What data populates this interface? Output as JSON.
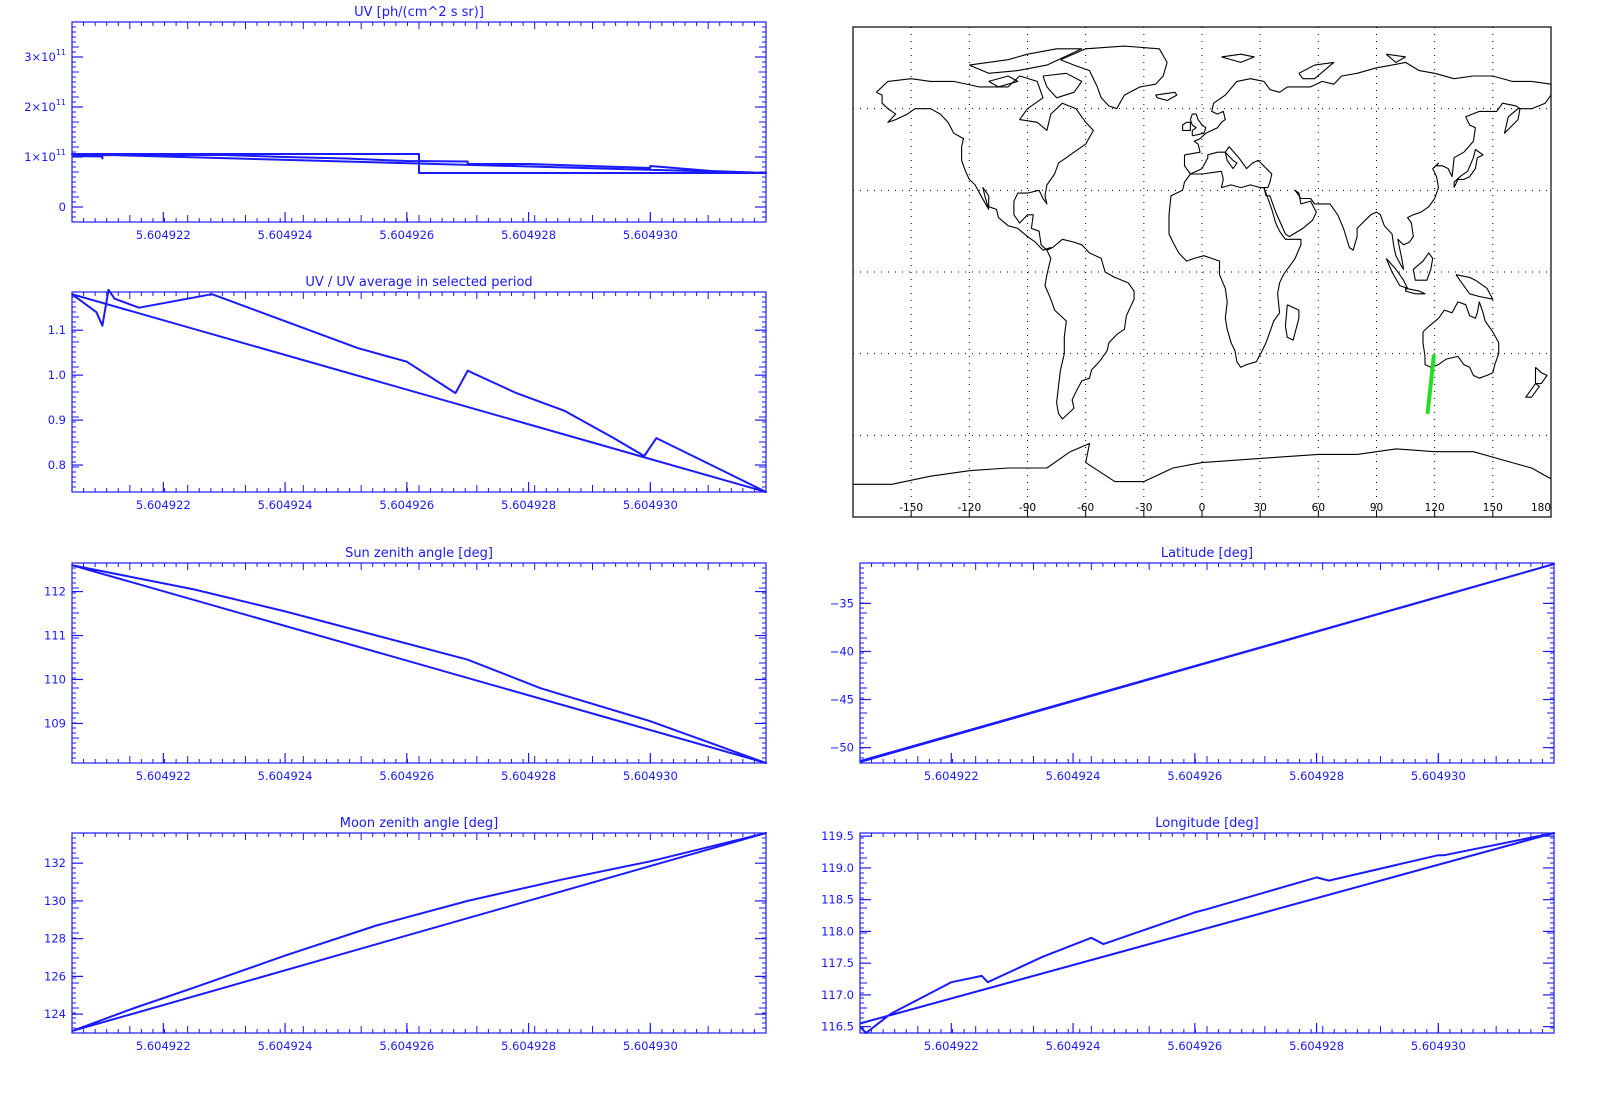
{
  "colors": {
    "plot": "#1a1aff",
    "track": "#22e022",
    "coast": "#000000",
    "grid": "#000000"
  },
  "chart_data": [
    {
      "id": "uv",
      "type": "line",
      "title": "UV [ph/(cm^2 s sr)]",
      "xticks": [
        "5.604922",
        "5.604924",
        "5.604926",
        "5.604928",
        "5.604930"
      ],
      "xtick_values": [
        5.604922,
        5.604924,
        5.604926,
        5.604928,
        5.60493
      ],
      "xlim": [
        5.6049205,
        5.6049319
      ],
      "ylim": [
        -0.3,
        3.7
      ],
      "yticks": [
        {
          "v": 0,
          "base": "0",
          "exp": ""
        },
        {
          "v": 1,
          "base": "1×10",
          "exp": "11"
        },
        {
          "v": 2,
          "base": "2×10",
          "exp": "11"
        },
        {
          "v": 3,
          "base": "3×10",
          "exp": "11"
        }
      ],
      "y_multiplier": "1e11",
      "x": [
        5.6049205,
        5.604921,
        5.604921,
        5.604921,
        5.604922,
        5.604922,
        5.604923,
        5.604924,
        5.604925,
        5.604926,
        5.604926,
        5.604927,
        5.604927,
        5.604928,
        5.604929,
        5.60493,
        5.60493,
        5.604931,
        5.6049319,
        5.6049205,
        5.6049262,
        5.6049262,
        5.6049319
      ],
      "y": [
        1.02,
        1.01,
        0.97,
        1.04,
        1.03,
        1.04,
        1.04,
        1.0,
        0.97,
        0.92,
        0.92,
        0.91,
        0.86,
        0.86,
        0.82,
        0.78,
        0.82,
        0.72,
        0.68,
        1.06,
        1.06,
        0.68,
        0.68
      ]
    },
    {
      "id": "uvratio",
      "type": "line",
      "title": "UV / UV average in selected period",
      "xticks": [
        "5.604922",
        "5.604924",
        "5.604926",
        "5.604928",
        "5.604930"
      ],
      "xtick_values": [
        5.604922,
        5.604924,
        5.604926,
        5.604928,
        5.60493
      ],
      "xlim": [
        5.6049205,
        5.6049319
      ],
      "ylim": [
        0.74,
        1.185
      ],
      "yticks": [
        {
          "v": 0.8,
          "base": "0.8",
          "exp": ""
        },
        {
          "v": 0.9,
          "base": "0.9",
          "exp": ""
        },
        {
          "v": 1.0,
          "base": "1.0",
          "exp": ""
        },
        {
          "v": 1.1,
          "base": "1.1",
          "exp": ""
        }
      ],
      "x": [
        5.6049205,
        5.6049209,
        5.604921,
        5.6049211,
        5.6049212,
        5.6049216,
        5.604922,
        5.6049228,
        5.6049236,
        5.6049244,
        5.6049252,
        5.604926,
        5.6049268,
        5.604927,
        5.6049278,
        5.6049286,
        5.6049294,
        5.6049299,
        5.6049301,
        5.604931,
        5.6049319,
        5.6049205
      ],
      "y": [
        1.18,
        1.14,
        1.11,
        1.19,
        1.17,
        1.15,
        1.16,
        1.18,
        1.14,
        1.1,
        1.06,
        1.03,
        0.96,
        1.01,
        0.96,
        0.92,
        0.86,
        0.82,
        0.86,
        0.8,
        0.74,
        1.18
      ]
    },
    {
      "id": "sza",
      "type": "line",
      "title": "Sun zenith angle [deg]",
      "xticks": [
        "5.604922",
        "5.604924",
        "5.604926",
        "5.604928",
        "5.604930"
      ],
      "xtick_values": [
        5.604922,
        5.604924,
        5.604926,
        5.604928,
        5.60493
      ],
      "xlim": [
        5.6049205,
        5.6049319
      ],
      "ylim": [
        108.1,
        112.65
      ],
      "yticks": [
        {
          "v": 109,
          "base": "109",
          "exp": ""
        },
        {
          "v": 110,
          "base": "110",
          "exp": ""
        },
        {
          "v": 111,
          "base": "111",
          "exp": ""
        },
        {
          "v": 112,
          "base": "112",
          "exp": ""
        }
      ],
      "x": [
        5.6049205,
        5.6049225,
        5.604924,
        5.6049255,
        5.604927,
        5.6049282,
        5.60493,
        5.6049319,
        5.6049205
      ],
      "y": [
        112.6,
        112.05,
        111.55,
        111.0,
        110.45,
        109.8,
        109.05,
        108.1,
        112.6
      ]
    },
    {
      "id": "mza",
      "type": "line",
      "title": "Moon zenith angle [deg]",
      "xticks": [
        "5.604922",
        "5.604924",
        "5.604926",
        "5.604928",
        "5.604930"
      ],
      "xtick_values": [
        5.604922,
        5.604924,
        5.604926,
        5.604928,
        5.60493
      ],
      "xlim": [
        5.6049205,
        5.6049319
      ],
      "ylim": [
        123.0,
        133.6
      ],
      "yticks": [
        {
          "v": 124,
          "base": "124",
          "exp": ""
        },
        {
          "v": 126,
          "base": "126",
          "exp": ""
        },
        {
          "v": 128,
          "base": "128",
          "exp": ""
        },
        {
          "v": 130,
          "base": "130",
          "exp": ""
        },
        {
          "v": 132,
          "base": "132",
          "exp": ""
        }
      ],
      "x": [
        5.6049205,
        5.6049215,
        5.6049225,
        5.604924,
        5.6049255,
        5.604927,
        5.6049285,
        5.60493,
        5.6049319,
        5.6049205
      ],
      "y": [
        123.1,
        124.3,
        125.4,
        127.1,
        128.7,
        130.0,
        131.1,
        132.1,
        133.6,
        123.1
      ]
    },
    {
      "id": "lat",
      "type": "line",
      "title": "Latitude [deg]",
      "xticks": [
        "5.604922",
        "5.604924",
        "5.604926",
        "5.604928",
        "5.604930"
      ],
      "xtick_values": [
        5.604922,
        5.604924,
        5.604926,
        5.604928,
        5.60493
      ],
      "xlim": [
        5.6049205,
        5.6049319
      ],
      "ylim": [
        -51.6,
        -30.8
      ],
      "yticks": [
        {
          "v": -50,
          "base": "−50",
          "exp": ""
        },
        {
          "v": -45,
          "base": "−45",
          "exp": ""
        },
        {
          "v": -40,
          "base": "−40",
          "exp": ""
        },
        {
          "v": -35,
          "base": "−35",
          "exp": ""
        }
      ],
      "x": [
        5.6049205,
        5.6049319,
        5.6049205
      ],
      "y": [
        -51.5,
        -30.9,
        -51.4
      ]
    },
    {
      "id": "lon",
      "type": "line",
      "title": "Longitude [deg]",
      "xticks": [
        "5.604922",
        "5.604924",
        "5.604926",
        "5.604928",
        "5.604930"
      ],
      "xtick_values": [
        5.604922,
        5.604924,
        5.604926,
        5.604928,
        5.60493
      ],
      "xlim": [
        5.6049205,
        5.6049319
      ],
      "ylim": [
        116.4,
        119.55
      ],
      "ytick_values": [
        116.5,
        117.0,
        117.5,
        118.0,
        118.5,
        119.0,
        119.5
      ],
      "yticks": [
        {
          "v": 116.5,
          "base": "116.5",
          "exp": ""
        },
        {
          "v": 117.0,
          "base": "117.0",
          "exp": ""
        },
        {
          "v": 117.5,
          "base": "117.5",
          "exp": ""
        },
        {
          "v": 118.0,
          "base": "118.0",
          "exp": ""
        },
        {
          "v": 118.5,
          "base": "118.5",
          "exp": ""
        },
        {
          "v": 119.0,
          "base": "119.0",
          "exp": ""
        },
        {
          "v": 119.5,
          "base": "119.5",
          "exp": ""
        }
      ],
      "x": [
        5.6049205,
        5.6049206,
        5.604921,
        5.604922,
        5.6049225,
        5.6049226,
        5.6049235,
        5.6049243,
        5.6049245,
        5.604926,
        5.6049262,
        5.604928,
        5.6049282,
        5.60493,
        5.6049301,
        5.6049319,
        5.6049205
      ],
      "y": [
        116.5,
        116.4,
        116.7,
        117.2,
        117.3,
        117.2,
        117.6,
        117.9,
        117.8,
        118.3,
        118.35,
        118.85,
        118.8,
        119.2,
        119.2,
        119.55,
        116.55
      ]
    }
  ],
  "map": {
    "xticks": [
      "-150",
      "-120",
      "-90",
      "-60",
      "-30",
      "0",
      "30",
      "60",
      "90",
      "120",
      "150",
      "180"
    ],
    "xtick_values": [
      -150,
      -120,
      -90,
      -60,
      -30,
      0,
      30,
      60,
      90,
      120,
      150,
      180
    ],
    "lon_range": [
      -180,
      180
    ],
    "lat_range": [
      -90,
      90
    ],
    "grid_lats": [
      -60,
      -30,
      0,
      30,
      60
    ],
    "grid_style": "dotted",
    "track": {
      "lon": [
        116.4,
        119.55
      ],
      "lat": [
        -51.5,
        -30.9
      ]
    }
  }
}
